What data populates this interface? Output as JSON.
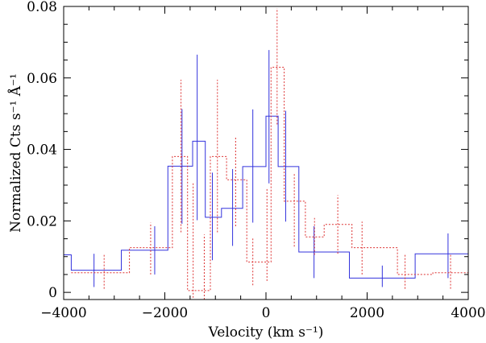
{
  "chart_data": {
    "type": "line",
    "title": "",
    "xlabel": "Velocity (km s⁻¹)",
    "ylabel": "Normalized Cts s⁻¹ Å⁻¹",
    "xlim": [
      -4000,
      4000
    ],
    "ylim": [
      -0.002,
      0.08
    ],
    "xticks": [
      -4000,
      -2000,
      0,
      2000,
      4000
    ],
    "xtick_labels": [
      "−4000",
      "−2000",
      "0",
      "2000",
      "4000"
    ],
    "yticks": [
      0,
      0.02,
      0.04,
      0.06,
      0.08
    ],
    "ytick_labels": [
      "0",
      "0.02",
      "0.04",
      "0.06",
      "0.08"
    ],
    "grid": false,
    "legend": "none",
    "series": [
      {
        "style": "solid-step",
        "color": "#3333dd",
        "edges": [
          -4000,
          -3850,
          -2860,
          -1940,
          -1450,
          -1200,
          -880,
          -460,
          0,
          240,
          650,
          1650,
          2950,
          4000
        ],
        "values": [
          0.0105,
          0.0062,
          0.0118,
          0.0353,
          0.0423,
          0.021,
          0.0235,
          0.0352,
          0.0493,
          0.0352,
          0.0113,
          0.004,
          0.0108
        ],
        "error_x": [
          -3400,
          -2200,
          -1660,
          -1360,
          -1060,
          -660,
          -260,
          60,
          390,
          950,
          2300,
          3600
        ],
        "error_y": [
          [
            0.0015,
            0.0108
          ],
          [
            0.005,
            0.0185
          ],
          [
            0.0192,
            0.0513
          ],
          [
            0.0202,
            0.0665
          ],
          [
            0.009,
            0.0335
          ],
          [
            0.013,
            0.0345
          ],
          [
            0.0195,
            0.0512
          ],
          [
            0.0305,
            0.0678
          ],
          [
            0.0198,
            0.0508
          ],
          [
            0.004,
            0.0185
          ],
          [
            0.0015,
            0.0075
          ],
          [
            0.004,
            0.0165
          ]
        ]
      },
      {
        "style": "dotted-step",
        "color": "#dd3333",
        "edges": [
          -3850,
          -2700,
          -1850,
          -1550,
          -1320,
          -1100,
          -780,
          -380,
          -150,
          100,
          360,
          780,
          1150,
          1700,
          2600,
          3300,
          4000
        ],
        "values": [
          0.0055,
          0.0125,
          0.038,
          0.0005,
          0.0005,
          0.038,
          0.0315,
          0.0085,
          0.0085,
          0.063,
          0.0255,
          0.0155,
          0.019,
          0.0125,
          0.005,
          0.0055
        ],
        "error_x": [
          -3200,
          -2280,
          -1680,
          -1440,
          -1220,
          -960,
          -600,
          -260,
          20,
          220,
          560,
          960,
          1420,
          1900,
          2750,
          3650
        ],
        "error_y": [
          [
            0.001,
            0.0105
          ],
          [
            0.005,
            0.0195
          ],
          [
            0.0168,
            0.0595
          ],
          [
            -0.0015,
            0.0305
          ],
          [
            -0.002,
            0.0162
          ],
          [
            0.0168,
            0.0595
          ],
          [
            0.0185,
            0.0435
          ],
          [
            0.002,
            0.0152
          ],
          [
            0.0032,
            0.0292
          ],
          [
            0.047,
            0.0795
          ],
          [
            0.0128,
            0.0335
          ],
          [
            0.0105,
            0.0208
          ],
          [
            0.0108,
            0.0272
          ],
          [
            0.005,
            0.0198
          ],
          [
            0.001,
            0.0108
          ],
          [
            0.001,
            0.0108
          ]
        ]
      }
    ]
  }
}
